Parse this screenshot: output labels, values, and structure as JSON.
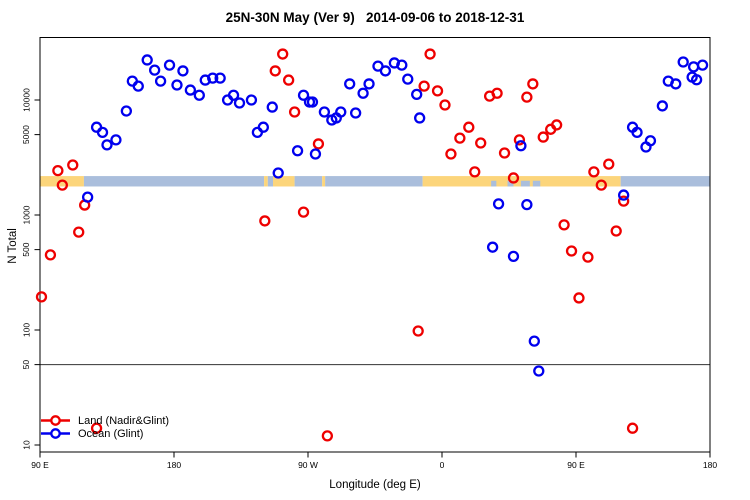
{
  "chart_data": {
    "type": "scatter",
    "title": "25N-30N May (Ver 9)   2014-09-06 to 2018-12-31",
    "xlabel": "Longitude (deg E)",
    "ylabel": "N Total",
    "y_scale": "log",
    "ylim": [
      8,
      35000
    ],
    "xlim_deg_east_continuous": [
      90,
      540
    ],
    "grid": false,
    "legend_position": "bottom-left",
    "x_ticks": [
      {
        "lon": 90,
        "label": "90 E"
      },
      {
        "lon": 180,
        "label": "180"
      },
      {
        "lon": 270,
        "label": "90 W"
      },
      {
        "lon": 360,
        "label": "0"
      },
      {
        "lon": 450,
        "label": "90 E"
      },
      {
        "lon": 540,
        "label": "180"
      }
    ],
    "y_ticks": [
      {
        "value": 10000,
        "label": "10000"
      },
      {
        "value": 5000,
        "label": "5000"
      },
      {
        "value": 1000,
        "label": "1000"
      },
      {
        "value": 500,
        "label": "500"
      },
      {
        "value": 100,
        "label": "100"
      },
      {
        "value": 50,
        "label": "50"
      },
      {
        "value": 10,
        "label": "10"
      }
    ],
    "reference_line": {
      "y": 50,
      "color": "#333333"
    },
    "land_ocean_band": {
      "value_top": 2180,
      "value_bottom": 1770,
      "land_color": "#FCD57B",
      "ocean_color": "#AABEDC",
      "segments": [
        {
          "from": 90,
          "to": 119.5,
          "surface": "land"
        },
        {
          "from": 119.5,
          "to": 240.5,
          "surface": "ocean"
        },
        {
          "from": 240.5,
          "to": 243,
          "surface": "land"
        },
        {
          "from": 243,
          "to": 246.5,
          "surface": "ocean"
        },
        {
          "from": 246.5,
          "to": 261,
          "surface": "land"
        },
        {
          "from": 261,
          "to": 279.5,
          "surface": "ocean"
        },
        {
          "from": 279.5,
          "to": 281.5,
          "surface": "land"
        },
        {
          "from": 281.5,
          "to": 347,
          "surface": "ocean"
        },
        {
          "from": 347,
          "to": 480,
          "surface": "land"
        },
        {
          "from": 480,
          "to": 540,
          "surface": "ocean"
        }
      ],
      "ocean_notches": [
        {
          "from": 393,
          "to": 396.5
        },
        {
          "from": 404,
          "to": 408
        },
        {
          "from": 413,
          "to": 419
        },
        {
          "from": 421,
          "to": 426
        }
      ]
    },
    "series": [
      {
        "id": "land",
        "name": "Land (Nadir&Glint)",
        "color": "#EE0000",
        "points": [
          [
            102,
            2430
          ],
          [
            112,
            2720
          ],
          [
            105,
            1820
          ],
          [
            120,
            1220
          ],
          [
            116,
            710
          ],
          [
            97,
            450
          ],
          [
            91,
            194
          ],
          [
            128,
            14
          ],
          [
            241,
            888
          ],
          [
            253,
            25100
          ],
          [
            248,
            17900
          ],
          [
            257,
            14900
          ],
          [
            261,
            7870
          ],
          [
            277,
            4150
          ],
          [
            267,
            1060
          ],
          [
            283,
            12
          ],
          [
            344,
            98
          ],
          [
            352,
            25100
          ],
          [
            348,
            13200
          ],
          [
            357,
            12000
          ],
          [
            362,
            9050
          ],
          [
            378,
            5800
          ],
          [
            372,
            4660
          ],
          [
            366,
            3390
          ],
          [
            386,
            4230
          ],
          [
            382,
            2370
          ],
          [
            392,
            10800
          ],
          [
            397,
            11450
          ],
          [
            421,
            13800
          ],
          [
            417,
            10600
          ],
          [
            412,
            4500
          ],
          [
            428,
            4760
          ],
          [
            433,
            5560
          ],
          [
            437,
            6070
          ],
          [
            402,
            3460
          ],
          [
            408,
            2100
          ],
          [
            462,
            2370
          ],
          [
            472,
            2770
          ],
          [
            467,
            1820
          ],
          [
            482,
            1320
          ],
          [
            442,
            820
          ],
          [
            477,
            726
          ],
          [
            447,
            486
          ],
          [
            458,
            430
          ],
          [
            452,
            190
          ],
          [
            488,
            14
          ]
        ]
      },
      {
        "id": "ocean",
        "name": "Ocean (Glint)",
        "color": "#0000EE",
        "points": [
          [
            122,
            1430
          ],
          [
            128,
            5800
          ],
          [
            132,
            5230
          ],
          [
            135,
            4070
          ],
          [
            141,
            4500
          ],
          [
            148,
            8020
          ],
          [
            152,
            14600
          ],
          [
            156,
            13200
          ],
          [
            162,
            22300
          ],
          [
            167,
            18200
          ],
          [
            171,
            14600
          ],
          [
            177,
            20100
          ],
          [
            182,
            13500
          ],
          [
            186,
            17900
          ],
          [
            191,
            12200
          ],
          [
            197,
            11000
          ],
          [
            201,
            14900
          ],
          [
            206,
            15500
          ],
          [
            211,
            15500
          ],
          [
            216,
            10000
          ],
          [
            220,
            11000
          ],
          [
            224,
            9420
          ],
          [
            232,
            10000
          ],
          [
            236,
            5230
          ],
          [
            240,
            5800
          ],
          [
            246,
            8680
          ],
          [
            250,
            2320
          ],
          [
            263,
            3620
          ],
          [
            267,
            11000
          ],
          [
            271,
            9600
          ],
          [
            273,
            9600
          ],
          [
            275,
            3390
          ],
          [
            281,
            7870
          ],
          [
            286,
            6700
          ],
          [
            289,
            6980
          ],
          [
            292,
            7870
          ],
          [
            298,
            13800
          ],
          [
            302,
            7710
          ],
          [
            307,
            11450
          ],
          [
            311,
            13800
          ],
          [
            317,
            19700
          ],
          [
            322,
            17900
          ],
          [
            328,
            21000
          ],
          [
            333,
            20100
          ],
          [
            337,
            15200
          ],
          [
            343,
            11200
          ],
          [
            345,
            6980
          ],
          [
            394,
            525
          ],
          [
            398,
            1250
          ],
          [
            408,
            437
          ],
          [
            413,
            4000
          ],
          [
            417,
            1230
          ],
          [
            422,
            80
          ],
          [
            425,
            44
          ],
          [
            482,
            1490
          ],
          [
            488,
            5800
          ],
          [
            491,
            5230
          ],
          [
            497,
            3900
          ],
          [
            500,
            4420
          ],
          [
            508,
            8880
          ],
          [
            512,
            14600
          ],
          [
            517,
            13800
          ],
          [
            522,
            21400
          ],
          [
            528,
            15800
          ],
          [
            529,
            19400
          ],
          [
            531,
            15000
          ],
          [
            535,
            20100
          ]
        ]
      }
    ]
  }
}
